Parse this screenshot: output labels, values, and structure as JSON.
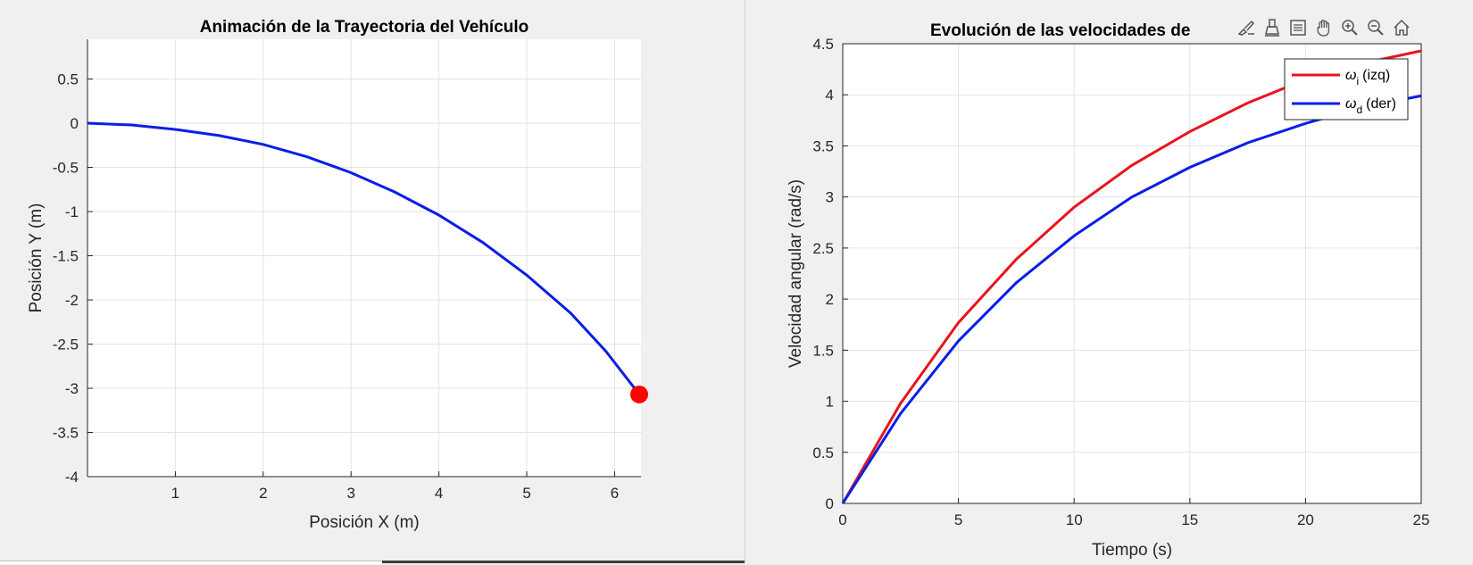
{
  "colors": {
    "trajectory": "#0a1ee6",
    "vehicle_marker": "#ff0000",
    "omega_i": "#e8141e",
    "omega_d": "#0a1ee6",
    "grid": "#e3e3e3",
    "axes": "#262626"
  },
  "toolbar": {
    "icons": [
      "brush-icon",
      "data-tips-icon",
      "legend-icon",
      "pan-icon",
      "zoom-in-icon",
      "zoom-out-icon",
      "home-icon"
    ]
  },
  "chart_data": [
    {
      "type": "line",
      "title": "Animación de la Trayectoria del Vehículo",
      "xlabel": "Posición X (m)",
      "ylabel": "Posición Y (m)",
      "xlim": [
        0,
        6.3
      ],
      "ylim": [
        -4,
        0.95
      ],
      "xticks": [
        1,
        2,
        3,
        4,
        5,
        6
      ],
      "yticks": [
        0.5,
        0,
        -0.5,
        -1,
        -1.5,
        -2,
        -2.5,
        -3,
        -3.5,
        -4
      ],
      "xtick_labels": [
        "1",
        "2",
        "3",
        "4",
        "5",
        "6"
      ],
      "ytick_labels": [
        "0.5",
        "0",
        "-0.5",
        "-1",
        "-1.5",
        "-2",
        "-2.5",
        "-3",
        "-3.5",
        "-4"
      ],
      "grid": true,
      "series": [
        {
          "x": [
            0,
            0.5,
            1,
            1.5,
            2,
            2.5,
            3,
            3.5,
            4,
            4.5,
            5,
            5.5,
            5.9,
            6.25
          ],
          "y": [
            0,
            -0.02,
            -0.07,
            -0.14,
            -0.24,
            -0.38,
            -0.56,
            -0.78,
            -1.04,
            -1.35,
            -1.72,
            -2.15,
            -2.58,
            -3.03
          ]
        }
      ],
      "marker": {
        "x": 6.28,
        "y": -3.07
      }
    },
    {
      "type": "line",
      "title": "Evolución de las velocidades de",
      "xlabel": "Tiempo (s)",
      "ylabel": "Velocidad angular (rad/s)",
      "xlim": [
        0,
        25
      ],
      "ylim": [
        0,
        4.5
      ],
      "xticks": [
        0,
        5,
        10,
        15,
        20,
        25
      ],
      "yticks": [
        0,
        0.5,
        1,
        1.5,
        2,
        2.5,
        3,
        3.5,
        4,
        4.5
      ],
      "xtick_labels": [
        "0",
        "5",
        "10",
        "15",
        "20",
        "25"
      ],
      "ytick_labels": [
        "0",
        "0.5",
        "1",
        "1.5",
        "2",
        "2.5",
        "3",
        "3.5",
        "4",
        "4.5"
      ],
      "grid": true,
      "legend": {
        "placement": "top-right",
        "entries": [
          {
            "symbol": "ω",
            "sub": "i",
            "suffix": "(izq)"
          },
          {
            "symbol": "ω",
            "sub": "d",
            "suffix": "(der)"
          }
        ]
      },
      "series": [
        {
          "x": [
            0,
            2.5,
            5,
            7.5,
            10,
            12.5,
            15,
            17.5,
            20,
            22.5,
            25
          ],
          "y": [
            0,
            0.98,
            1.77,
            2.39,
            2.9,
            3.31,
            3.64,
            3.92,
            4.15,
            4.31,
            4.43
          ]
        },
        {
          "x": [
            0,
            2.5,
            5,
            7.5,
            10,
            12.5,
            15,
            17.5,
            20,
            22.5,
            25
          ],
          "y": [
            0,
            0.88,
            1.59,
            2.16,
            2.62,
            3,
            3.29,
            3.53,
            3.72,
            3.88,
            3.99
          ]
        }
      ]
    }
  ]
}
